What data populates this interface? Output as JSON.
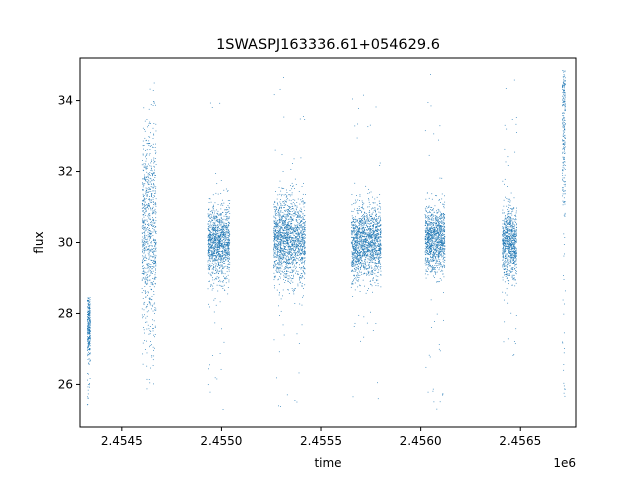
{
  "chart_data": {
    "type": "scatter",
    "title": "1SWASPJ163336.61+054629.6",
    "xlabel": "time",
    "ylabel": "flux",
    "x_offset_label": "1e6",
    "xlim": [
      2454290,
      2456780
    ],
    "ylim": [
      24.8,
      35.2
    ],
    "x_ticks": [
      2454500,
      2455000,
      2455500,
      2456000,
      2456500
    ],
    "x_tick_labels": [
      "2.4545",
      "2.4550",
      "2.4555",
      "2.4560",
      "2.4565"
    ],
    "y_ticks": [
      26,
      28,
      30,
      32,
      34
    ],
    "y_tick_labels": [
      "26",
      "28",
      "30",
      "32",
      "34"
    ],
    "grid": false,
    "point_color": "#1f77b4",
    "clusters": [
      {
        "x_start": 2454325,
        "x_end": 2454340,
        "flux_center": 27.7,
        "flux_spread": 0.45,
        "flux_min": 25.4,
        "flux_max": 28.5
      },
      {
        "x_start": 2454600,
        "x_end": 2454670,
        "flux_center": 30.3,
        "flux_spread": 1.5,
        "flux_min": 25.3,
        "flux_max": 34.8
      },
      {
        "x_start": 2454930,
        "x_end": 2455040,
        "flux_center": 30.0,
        "flux_spread": 0.5,
        "flux_min": 25.3,
        "flux_max": 34.7
      },
      {
        "x_start": 2455260,
        "x_end": 2455420,
        "flux_center": 30.1,
        "flux_spread": 0.6,
        "flux_min": 25.3,
        "flux_max": 34.7
      },
      {
        "x_start": 2455650,
        "x_end": 2455800,
        "flux_center": 30.0,
        "flux_spread": 0.5,
        "flux_min": 25.5,
        "flux_max": 34.2
      },
      {
        "x_start": 2456020,
        "x_end": 2456120,
        "flux_center": 30.1,
        "flux_spread": 0.45,
        "flux_min": 25.3,
        "flux_max": 34.9
      },
      {
        "x_start": 2456410,
        "x_end": 2456480,
        "flux_center": 30.0,
        "flux_spread": 0.5,
        "flux_min": 25.9,
        "flux_max": 34.6
      },
      {
        "x_start": 2456710,
        "x_end": 2456725,
        "flux_center": 33.8,
        "flux_spread": 1.5,
        "flux_min": 25.4,
        "flux_max": 34.9
      }
    ]
  }
}
